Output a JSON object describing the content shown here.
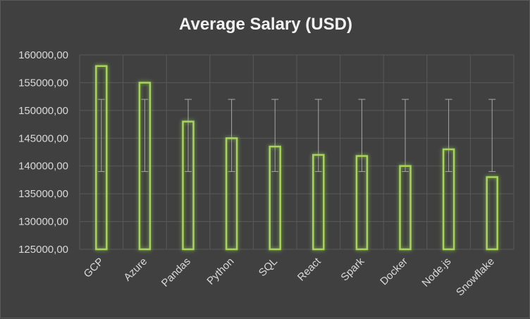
{
  "chart_data": {
    "type": "bar",
    "title": "Average Salary (USD)",
    "xlabel": "",
    "ylabel": "",
    "categories": [
      "GCP",
      "Azure",
      "Pandas",
      "Python",
      "SQL",
      "React",
      "Spark",
      "Docker",
      "Node.js",
      "Snowflake"
    ],
    "values": [
      158000,
      155000,
      148000,
      145000,
      143500,
      142000,
      141800,
      140000,
      143000,
      138000
    ],
    "error_bars": {
      "low": [
        139000,
        139000,
        139000,
        139000,
        139000,
        139000,
        139000,
        139000,
        139000,
        139000
      ],
      "high": [
        152000,
        152000,
        152000,
        152000,
        152000,
        152000,
        152000,
        152000,
        152000,
        152000
      ]
    },
    "ylim": [
      125000,
      160000
    ],
    "yticks": [
      160000,
      155000,
      150000,
      145000,
      140000,
      135000,
      130000,
      125000
    ],
    "ytick_labels": [
      "160000,00",
      "155000,00",
      "150000,00",
      "145000,00",
      "140000,00",
      "135000,00",
      "130000,00",
      "125000,00"
    ],
    "grid": true,
    "legend": "none",
    "colors": {
      "background": "#404040",
      "bar_outline": "#a9d45a",
      "bar_glow": "#92d050",
      "gridline": "#595959",
      "error_bar": "#a6a6a6",
      "text": "#d9d9d9",
      "title": "#f2f2f2"
    }
  }
}
